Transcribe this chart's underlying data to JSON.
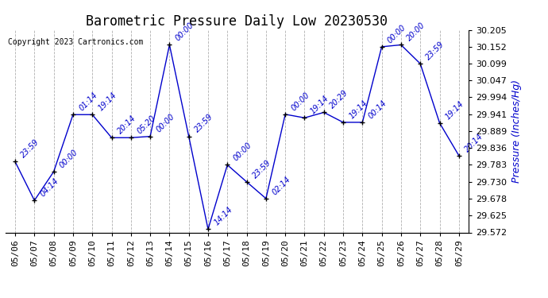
{
  "title": "Barometric Pressure Daily Low 20230530",
  "ylabel": "Pressure (Inches/Hg)",
  "copyright": "Copyright 2023 Cartronics.com",
  "line_color": "#0000cc",
  "marker_color": "#000000",
  "background_color": "#ffffff",
  "grid_color": "#b0b0b0",
  "ylim": [
    29.572,
    30.205
  ],
  "yticks": [
    29.572,
    29.625,
    29.678,
    29.73,
    29.783,
    29.836,
    29.889,
    29.941,
    29.994,
    30.047,
    30.099,
    30.152,
    30.205
  ],
  "dates": [
    "05/06",
    "05/07",
    "05/08",
    "05/09",
    "05/10",
    "05/11",
    "05/12",
    "05/13",
    "05/14",
    "05/15",
    "05/16",
    "05/17",
    "05/18",
    "05/19",
    "05/20",
    "05/21",
    "05/22",
    "05/23",
    "05/24",
    "05/25",
    "05/26",
    "05/27",
    "05/28",
    "05/29"
  ],
  "values": [
    29.793,
    29.672,
    29.762,
    29.94,
    29.94,
    29.868,
    29.868,
    29.872,
    30.158,
    29.872,
    29.582,
    29.783,
    29.73,
    29.678,
    29.941,
    29.93,
    29.947,
    29.916,
    29.916,
    30.152,
    30.158,
    30.099,
    29.914,
    29.812
  ],
  "time_labels": [
    "23:59",
    "04:14",
    "00:00",
    "01:14",
    "19:14",
    "20:14",
    "05:20",
    "00:00",
    "00:00",
    "23:59",
    "14:14",
    "00:00",
    "23:59",
    "02:14",
    "00:00",
    "19:14",
    "20:29",
    "19:14",
    "00:14",
    "00:00",
    "20:00",
    "23:59",
    "19:14",
    "20:14"
  ],
  "title_fontsize": 12,
  "tick_fontsize": 8,
  "label_fontsize": 7,
  "copyright_fontsize": 7,
  "ylabel_fontsize": 9
}
